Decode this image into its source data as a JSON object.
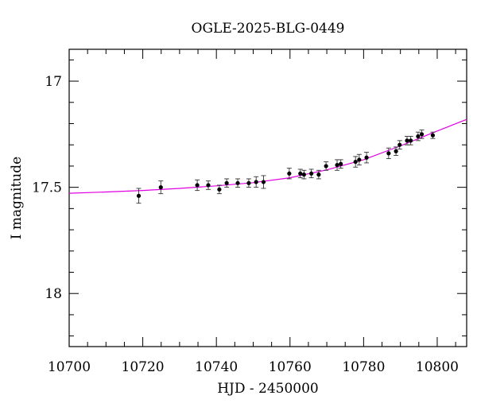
{
  "chart_data": {
    "type": "scatter",
    "title": "OGLE-2025-BLG-0449",
    "xlabel": "HJD - 2450000",
    "ylabel": "I magnitude",
    "xlim": [
      10700,
      10808
    ],
    "ylim": [
      18.25,
      16.85
    ],
    "y_inverted": true,
    "grid": false,
    "x_major_ticks": [
      10700,
      10720,
      10740,
      10760,
      10780,
      10800
    ],
    "x_tick_labels": [
      "10700",
      "10720",
      "10740",
      "10760",
      "10780",
      "10800"
    ],
    "y_major_ticks": [
      17.0,
      17.5,
      18.0
    ],
    "y_tick_labels": [
      "17",
      "17.5",
      "18"
    ],
    "colors": {
      "points": "#000000",
      "model": "#e000e0"
    },
    "points": [
      {
        "x": 10718.9,
        "y": 17.54,
        "err": 0.035
      },
      {
        "x": 10724.9,
        "y": 17.5,
        "err": 0.03
      },
      {
        "x": 10734.8,
        "y": 17.49,
        "err": 0.025
      },
      {
        "x": 10737.8,
        "y": 17.49,
        "err": 0.02
      },
      {
        "x": 10740.8,
        "y": 17.51,
        "err": 0.02
      },
      {
        "x": 10742.8,
        "y": 17.48,
        "err": 0.02
      },
      {
        "x": 10745.8,
        "y": 17.48,
        "err": 0.02
      },
      {
        "x": 10748.8,
        "y": 17.48,
        "err": 0.02
      },
      {
        "x": 10750.8,
        "y": 17.475,
        "err": 0.025
      },
      {
        "x": 10752.8,
        "y": 17.475,
        "err": 0.03
      },
      {
        "x": 10759.8,
        "y": 17.435,
        "err": 0.025
      },
      {
        "x": 10762.8,
        "y": 17.435,
        "err": 0.02
      },
      {
        "x": 10763.8,
        "y": 17.44,
        "err": 0.02
      },
      {
        "x": 10765.8,
        "y": 17.435,
        "err": 0.02
      },
      {
        "x": 10767.8,
        "y": 17.44,
        "err": 0.02
      },
      {
        "x": 10769.8,
        "y": 17.4,
        "err": 0.02
      },
      {
        "x": 10772.8,
        "y": 17.395,
        "err": 0.025
      },
      {
        "x": 10773.8,
        "y": 17.39,
        "err": 0.02
      },
      {
        "x": 10777.8,
        "y": 17.38,
        "err": 0.025
      },
      {
        "x": 10778.8,
        "y": 17.37,
        "err": 0.025
      },
      {
        "x": 10780.8,
        "y": 17.36,
        "err": 0.025
      },
      {
        "x": 10786.8,
        "y": 17.34,
        "err": 0.025
      },
      {
        "x": 10788.8,
        "y": 17.33,
        "err": 0.02
      },
      {
        "x": 10789.8,
        "y": 17.3,
        "err": 0.02
      },
      {
        "x": 10791.8,
        "y": 17.28,
        "err": 0.02
      },
      {
        "x": 10792.8,
        "y": 17.28,
        "err": 0.02
      },
      {
        "x": 10794.8,
        "y": 17.26,
        "err": 0.02
      },
      {
        "x": 10795.8,
        "y": 17.25,
        "err": 0.02
      },
      {
        "x": 10798.8,
        "y": 17.255,
        "err": 0.015
      }
    ],
    "model_curve": [
      {
        "x": 10700,
        "y": 17.528
      },
      {
        "x": 10710,
        "y": 17.522
      },
      {
        "x": 10720,
        "y": 17.515
      },
      {
        "x": 10730,
        "y": 17.505
      },
      {
        "x": 10740,
        "y": 17.493
      },
      {
        "x": 10750,
        "y": 17.478
      },
      {
        "x": 10760,
        "y": 17.455
      },
      {
        "x": 10770,
        "y": 17.418
      },
      {
        "x": 10780,
        "y": 17.37
      },
      {
        "x": 10790,
        "y": 17.305
      },
      {
        "x": 10800,
        "y": 17.235
      },
      {
        "x": 10808,
        "y": 17.18
      }
    ]
  }
}
